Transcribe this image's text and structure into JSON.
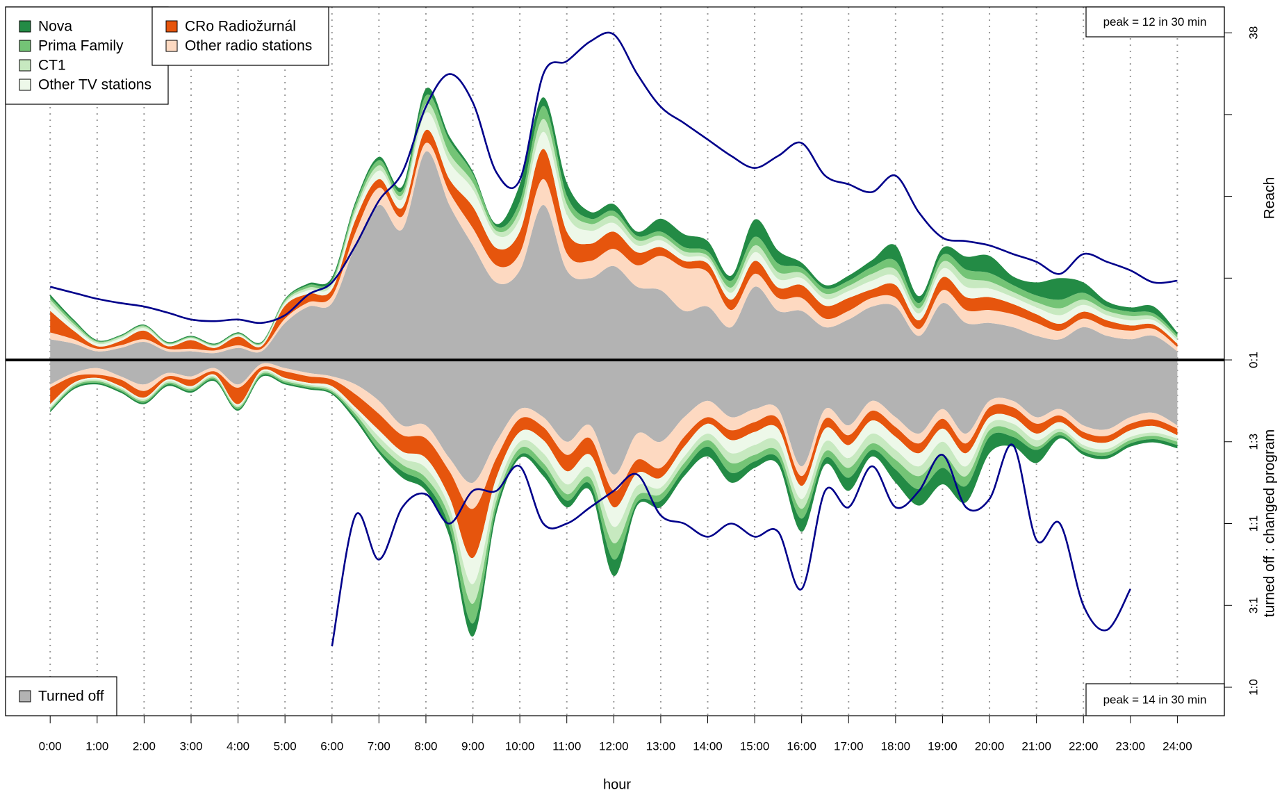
{
  "chart_data": {
    "type": "area",
    "xlabel": "hour",
    "x": [
      0,
      0.5,
      1,
      1.5,
      2,
      2.5,
      3,
      3.5,
      4,
      4.5,
      5,
      5.5,
      6,
      6.5,
      7,
      7.5,
      8,
      8.5,
      9,
      9.5,
      10,
      10.5,
      11,
      11.5,
      12,
      12.5,
      13,
      13.5,
      14,
      14.5,
      15,
      15.5,
      16,
      16.5,
      17,
      17.5,
      18,
      18.5,
      19,
      19.5,
      20,
      20.5,
      21,
      21.5,
      22,
      22.5,
      23,
      23.5,
      24
    ],
    "xlim": [
      -0.95,
      25
    ],
    "xticks": [
      {
        "value": 0,
        "label": "0:00"
      },
      {
        "value": 1,
        "label": "1:00"
      },
      {
        "value": 2,
        "label": "2:00"
      },
      {
        "value": 3,
        "label": "3:00"
      },
      {
        "value": 4,
        "label": "4:00"
      },
      {
        "value": 5,
        "label": "5:00"
      },
      {
        "value": 6,
        "label": "6:00"
      },
      {
        "value": 7,
        "label": "7:00"
      },
      {
        "value": 8,
        "label": "8:00"
      },
      {
        "value": 9,
        "label": "9:00"
      },
      {
        "value": 10,
        "label": "10:00"
      },
      {
        "value": 11,
        "label": "11:00"
      },
      {
        "value": 12,
        "label": "12:00"
      },
      {
        "value": 13,
        "label": "13:00"
      },
      {
        "value": 14,
        "label": "14:00"
      },
      {
        "value": 15,
        "label": "15:00"
      },
      {
        "value": 16,
        "label": "16:00"
      },
      {
        "value": 17,
        "label": "17:00"
      },
      {
        "value": 18,
        "label": "18:00"
      },
      {
        "value": 19,
        "label": "19:00"
      },
      {
        "value": 20,
        "label": "20:00"
      },
      {
        "value": 21,
        "label": "21:00"
      },
      {
        "value": 22,
        "label": "22:00"
      },
      {
        "value": 23,
        "label": "23:00"
      },
      {
        "value": 24,
        "label": "24:00"
      }
    ],
    "upper": {
      "ylabel": "Reach",
      "ylim": [
        0,
        41
      ],
      "yticks": [
        38
      ],
      "minor_yticks": [
        9.5,
        19,
        28.5
      ],
      "peak_label": "peak = 12 in 30 min",
      "series": [
        {
          "name": "Nova",
          "color": "#238b45",
          "values": [
            0.3,
            0.2,
            0.1,
            0.1,
            0.1,
            0.1,
            0.1,
            0.1,
            0.1,
            0.1,
            0.1,
            0.2,
            0.3,
            0.3,
            0.4,
            0.5,
            0.8,
            0.5,
            0.3,
            0.3,
            2,
            1,
            1.5,
            0.8,
            0.8,
            0.5,
            1.5,
            1.5,
            1.2,
            0.6,
            2,
            1.5,
            0.6,
            0.4,
            0.6,
            0.8,
            1.8,
            0.8,
            0.8,
            1.5,
            2,
            1,
            1.5,
            2.5,
            1.2,
            0.6,
            0.5,
            0.8,
            0.3
          ]
        },
        {
          "name": "Prima Family",
          "color": "#74c476",
          "values": [
            0.3,
            0.3,
            0.1,
            0.1,
            0.1,
            0.1,
            0.1,
            0.1,
            0.1,
            0.1,
            0.2,
            0.3,
            0.3,
            0.5,
            0.6,
            0.5,
            1,
            1.5,
            1,
            0.5,
            1,
            1.5,
            1,
            0.6,
            0.6,
            0.5,
            0.5,
            0.5,
            0.5,
            0.8,
            1,
            1,
            0.6,
            0.6,
            0.6,
            0.8,
            1,
            0.6,
            0.8,
            1,
            1,
            0.8,
            0.8,
            1,
            0.8,
            0.5,
            0.5,
            0.4,
            0.3
          ]
        },
        {
          "name": "CT1",
          "color": "#c7e9c0",
          "values": [
            0.5,
            0.3,
            0.2,
            0.2,
            0.2,
            0.1,
            0.1,
            0.1,
            0.1,
            0.1,
            0.2,
            0.3,
            0.3,
            0.5,
            0.6,
            0.5,
            1,
            1,
            0.8,
            0.5,
            1,
            1.5,
            1.2,
            0.8,
            0.8,
            0.6,
            0.5,
            0.5,
            0.4,
            0.6,
            0.8,
            0.8,
            0.6,
            0.6,
            0.6,
            0.8,
            0.8,
            0.6,
            0.8,
            1,
            0.8,
            0.6,
            0.6,
            0.8,
            0.6,
            0.5,
            0.5,
            0.4,
            0.3
          ]
        },
        {
          "name": "Other TV stations",
          "color": "#edf8e9",
          "values": [
            0.8,
            0.5,
            0.3,
            0.3,
            0.3,
            0.2,
            0.2,
            0.2,
            0.2,
            0.2,
            0.3,
            0.4,
            0.5,
            0.8,
            1,
            1,
            2,
            2,
            2,
            1.5,
            1.5,
            2,
            2,
            1.5,
            1,
            0.8,
            0.8,
            0.6,
            0.5,
            0.8,
            1,
            1,
            0.8,
            0.8,
            0.8,
            1,
            1,
            0.8,
            1,
            1.2,
            1,
            0.8,
            0.8,
            1,
            0.8,
            0.6,
            0.6,
            0.5,
            0.4
          ]
        },
        {
          "name": "CRo Radiožurnál",
          "color": "#e6550d",
          "values": [
            2.5,
            1,
            0.3,
            0.5,
            1,
            0.3,
            1,
            0.3,
            1,
            0.3,
            1.5,
            1,
            0.8,
            1.5,
            1,
            1,
            1.5,
            1.5,
            2.5,
            2,
            2.5,
            3.5,
            2.5,
            2,
            2,
            1.5,
            1,
            0.8,
            1,
            1.2,
            1.5,
            1.2,
            1.5,
            1.5,
            1.5,
            1,
            1.5,
            1,
            1.5,
            1.5,
            1.5,
            1.2,
            1,
            0.8,
            0.8,
            0.8,
            0.6,
            0.5,
            0.4
          ]
        },
        {
          "name": "Other radio stations",
          "color": "#fdd9c1",
          "values": [
            0.8,
            0.5,
            0.3,
            0.3,
            0.3,
            0.3,
            0.3,
            0.3,
            0.3,
            0.3,
            0.5,
            0.5,
            0.8,
            1.5,
            2,
            1.5,
            1,
            1.5,
            2,
            2,
            2,
            3,
            2,
            2,
            2,
            2.5,
            4,
            5,
            4,
            2,
            1.5,
            1.5,
            1.5,
            1,
            1,
            1,
            1,
            0.8,
            1.5,
            1.5,
            1.5,
            1.5,
            1.5,
            1,
            1,
            1,
            1,
            0.8,
            0.5
          ]
        },
        {
          "name": "Turned off",
          "color": "#b3b3b3",
          "values": [
            2.4,
            1.9,
            1.0,
            1.4,
            2.1,
            1.0,
            1.0,
            0.8,
            1.4,
            1.0,
            4.3,
            6.2,
            6.6,
            13.3,
            18,
            15.2,
            24.2,
            18,
            13.3,
            9,
            10.4,
            18,
            10.4,
            9.5,
            10.9,
            8.5,
            8.1,
            5.7,
            6.2,
            3.8,
            8.5,
            5.7,
            5.7,
            3.8,
            4.7,
            6.2,
            6.2,
            2.8,
            6.6,
            4.3,
            4.3,
            3.8,
            2.8,
            2.4,
            3.8,
            2.8,
            2.4,
            2.8,
            1.0
          ]
        }
      ],
      "line": {
        "color": "#00008b",
        "values": [
          8.5,
          7.8,
          7.1,
          6.6,
          6.2,
          5.5,
          4.7,
          4.5,
          4.7,
          4.3,
          5.2,
          7.6,
          9.0,
          13.3,
          18.5,
          21.8,
          29.4,
          33.2,
          29.9,
          21.8,
          20.9,
          33.2,
          34.7,
          37,
          37.8,
          33.2,
          29.4,
          27.5,
          25.6,
          23.7,
          22.3,
          23.7,
          25.2,
          21.4,
          20.4,
          19.5,
          21.4,
          17.1,
          14.2,
          13.8,
          13.3,
          12.3,
          11.4,
          10,
          12.3,
          11.4,
          10.4,
          9.0,
          9.2
        ]
      }
    },
    "lower": {
      "ylabel": "turned off : changed program",
      "y2lim": [
        0,
        1.087
      ],
      "y2ticks": [
        {
          "value": 0,
          "label": "0:1"
        },
        {
          "value": 0.25,
          "label": "1:3"
        },
        {
          "value": 0.5,
          "label": "1:1"
        },
        {
          "value": 0.75,
          "label": "3:1"
        },
        {
          "value": 1,
          "label": "1:0"
        }
      ],
      "peak_label": "peak = 14 in 30 min",
      "series": [
        {
          "values": [
            0.005,
            0.005,
            0.005,
            0.005,
            0.005,
            0.005,
            0.005,
            0.005,
            0.005,
            0.005,
            0.005,
            0.005,
            0.005,
            0.01,
            0.01,
            0.02,
            0.02,
            0.03,
            0.04,
            0.02,
            0.01,
            0.02,
            0.02,
            0.02,
            0.05,
            0.01,
            0.02,
            0.02,
            0.03,
            0.03,
            0.02,
            0.02,
            0.04,
            0.02,
            0.04,
            0.02,
            0.04,
            0.05,
            0.05,
            0.05,
            0.05,
            0.03,
            0.04,
            0.01,
            0.01,
            0.01,
            0.01,
            0.01,
            0.01
          ]
        },
        {
          "values": [
            0.005,
            0.005,
            0.005,
            0.005,
            0.005,
            0.005,
            0.005,
            0.005,
            0.005,
            0.005,
            0.005,
            0.005,
            0.005,
            0.01,
            0.02,
            0.02,
            0.02,
            0.03,
            0.06,
            0.02,
            0.02,
            0.02,
            0.02,
            0.02,
            0.05,
            0.02,
            0.02,
            0.02,
            0.02,
            0.03,
            0.02,
            0.02,
            0.03,
            0.02,
            0.03,
            0.02,
            0.03,
            0.04,
            0.04,
            0.03,
            0.02,
            0.02,
            0.01,
            0.01,
            0.01,
            0.01,
            0.01,
            0.01,
            0.01
          ]
        },
        {
          "values": [
            0.005,
            0.005,
            0.005,
            0.005,
            0.005,
            0.005,
            0.005,
            0.005,
            0.005,
            0.005,
            0.005,
            0.005,
            0.005,
            0.01,
            0.02,
            0.02,
            0.03,
            0.03,
            0.06,
            0.03,
            0.02,
            0.03,
            0.03,
            0.03,
            0.05,
            0.03,
            0.02,
            0.02,
            0.02,
            0.03,
            0.03,
            0.03,
            0.03,
            0.03,
            0.03,
            0.03,
            0.03,
            0.03,
            0.04,
            0.03,
            0.02,
            0.02,
            0.02,
            0.01,
            0.01,
            0.01,
            0.01,
            0.01,
            0.01
          ]
        },
        {
          "values": [
            0.01,
            0.005,
            0.005,
            0.005,
            0.005,
            0.005,
            0.005,
            0.005,
            0.005,
            0.005,
            0.005,
            0.005,
            0.01,
            0.01,
            0.02,
            0.02,
            0.03,
            0.03,
            0.08,
            0.04,
            0.03,
            0.04,
            0.04,
            0.04,
            0.06,
            0.04,
            0.03,
            0.03,
            0.03,
            0.04,
            0.04,
            0.04,
            0.04,
            0.04,
            0.04,
            0.04,
            0.04,
            0.04,
            0.04,
            0.04,
            0.02,
            0.02,
            0.02,
            0.02,
            0.02,
            0.02,
            0.02,
            0.02,
            0.01
          ]
        },
        {
          "values": [
            0.05,
            0.02,
            0.01,
            0.02,
            0.02,
            0.01,
            0.02,
            0.01,
            0.05,
            0.01,
            0.02,
            0.02,
            0.02,
            0.04,
            0.05,
            0.05,
            0.06,
            0.08,
            0.15,
            0.06,
            0.04,
            0.04,
            0.05,
            0.05,
            0.05,
            0.04,
            0.03,
            0.03,
            0.02,
            0.03,
            0.03,
            0.03,
            0.03,
            0.03,
            0.03,
            0.03,
            0.03,
            0.03,
            0.03,
            0.03,
            0.03,
            0.03,
            0.03,
            0.02,
            0.02,
            0.02,
            0.02,
            0.02,
            0.02
          ]
        },
        {
          "values": [
            0.01,
            0.01,
            0.02,
            0.01,
            0.02,
            0.01,
            0.01,
            0.01,
            0.01,
            0.01,
            0.01,
            0.01,
            0.01,
            0.03,
            0.04,
            0.03,
            0.04,
            0.04,
            0.08,
            0.05,
            0.03,
            0.03,
            0.04,
            0.04,
            0.05,
            0.08,
            0.08,
            0.06,
            0.05,
            0.04,
            0.04,
            0.03,
            0.03,
            0.03,
            0.03,
            0.03,
            0.03,
            0.03,
            0.03,
            0.03,
            0.02,
            0.02,
            0.02,
            0.02,
            0.02,
            0.02,
            0.02,
            0.02,
            0.01
          ]
        },
        {
          "values": [
            0.075,
            0.04,
            0.025,
            0.05,
            0.075,
            0.04,
            0.05,
            0.025,
            0.075,
            0.012,
            0.025,
            0.04,
            0.05,
            0.075,
            0.125,
            0.2,
            0.2,
            0.3,
            0.375,
            0.25,
            0.15,
            0.175,
            0.25,
            0.2,
            0.35,
            0.225,
            0.25,
            0.175,
            0.125,
            0.175,
            0.15,
            0.15,
            0.325,
            0.15,
            0.2,
            0.125,
            0.175,
            0.225,
            0.15,
            0.225,
            0.125,
            0.125,
            0.175,
            0.15,
            0.2,
            0.212,
            0.175,
            0.162,
            0.2
          ]
        }
      ],
      "line": {
        "color": "#00008b",
        "values": [
          null,
          null,
          null,
          null,
          null,
          null,
          null,
          null,
          null,
          null,
          null,
          null,
          0.875,
          0.475,
          0.61,
          0.45,
          0.41,
          0.5,
          0.4,
          0.4,
          0.325,
          0.5,
          0.5,
          0.45,
          0.4,
          0.35,
          0.475,
          0.5,
          0.54,
          0.5,
          0.54,
          0.525,
          0.7,
          0.4,
          0.45,
          0.325,
          0.45,
          0.4,
          0.29,
          0.45,
          0.425,
          0.26,
          0.55,
          0.5,
          0.75,
          0.825,
          0.7,
          null,
          null
        ]
      }
    }
  }
}
